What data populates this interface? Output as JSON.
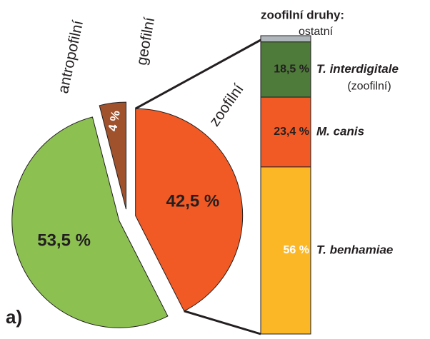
{
  "panel_label": "a)",
  "chart_data": [
    {
      "type": "pie",
      "categories": [
        "antropofilní",
        "geofilní",
        "zoofilní"
      ],
      "values": [
        53.5,
        4,
        42.5
      ],
      "value_labels": [
        "53,5 %",
        "4 %",
        "42,5 %"
      ],
      "colors": [
        "#8cc152",
        "#a0522d",
        "#f15a24"
      ]
    },
    {
      "type": "stacked_bar",
      "title": "zoofilní druhy:",
      "series": [
        {
          "name": "ostatní",
          "color": "#b0b7bc",
          "values": [
            2.1
          ]
        },
        {
          "name": "T. interdigitale",
          "annotation": "(zoofilní)",
          "color": "#4e7a3a",
          "values": [
            18.5
          ],
          "value_labels": [
            "18,5 %"
          ]
        },
        {
          "name": "M. canis",
          "color": "#f15a24",
          "values": [
            23.4
          ],
          "value_labels": [
            "23,4 %"
          ]
        },
        {
          "name": "T. benhamiae",
          "color": "#fbb726",
          "values": [
            56
          ],
          "value_labels": [
            "56 %"
          ]
        }
      ]
    }
  ]
}
